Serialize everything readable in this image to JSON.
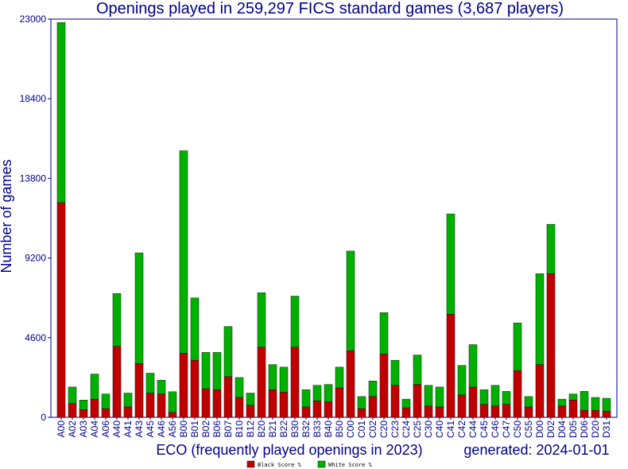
{
  "chart_data": {
    "type": "bar",
    "stacked": true,
    "title": "Openings played in 259,297 FICS standard games (3,687 players)",
    "xlabel": "ECO (frequently played openings in 2023)",
    "ylabel": "Number of games",
    "footer": "generated: 2024-01-01",
    "ylim": [
      0,
      23000
    ],
    "yticks": [
      "0",
      "4600",
      "9200",
      "13800",
      "18400",
      "23000"
    ],
    "grid": false,
    "legend_position": "bottom-center",
    "categories": [
      "A00",
      "A02",
      "A03",
      "A04",
      "A06",
      "A40",
      "A41",
      "A43",
      "A45",
      "A46",
      "A56",
      "B00",
      "B01",
      "B02",
      "B06",
      "B07",
      "B10",
      "B12",
      "B20",
      "B21",
      "B22",
      "B30",
      "B32",
      "B33",
      "B40",
      "B50",
      "C00",
      "C01",
      "C02",
      "C20",
      "C23",
      "C24",
      "C25",
      "C30",
      "C40",
      "C41",
      "C42",
      "C44",
      "C45",
      "C46",
      "C47",
      "C50",
      "C55",
      "D00",
      "D02",
      "D04",
      "D05",
      "D06",
      "D20",
      "D31"
    ],
    "series": [
      {
        "name": "Black Score %",
        "color": "#c00000",
        "values": [
          12400,
          800,
          450,
          1050,
          500,
          4100,
          600,
          3100,
          1400,
          1350,
          280,
          3700,
          3300,
          1650,
          1600,
          2350,
          1150,
          700,
          4050,
          1600,
          1450,
          4050,
          600,
          950,
          900,
          1700,
          3850,
          500,
          1200,
          3650,
          1850,
          550,
          1900,
          650,
          600,
          5950,
          1300,
          1750,
          750,
          650,
          750,
          2700,
          600,
          3050,
          8300,
          650,
          1000,
          400,
          400,
          350
        ]
      },
      {
        "name": "White Score %",
        "color": "#00b000",
        "values": [
          10400,
          950,
          550,
          1450,
          850,
          3050,
          800,
          6400,
          1150,
          800,
          1200,
          11700,
          3600,
          2100,
          2150,
          2900,
          1150,
          700,
          3150,
          1450,
          1450,
          2950,
          1000,
          900,
          1000,
          1200,
          5750,
          700,
          900,
          2400,
          1450,
          500,
          1700,
          1200,
          1150,
          5800,
          1700,
          2450,
          850,
          1200,
          750,
          2750,
          600,
          5250,
          2850,
          400,
          350,
          1100,
          750,
          750
        ]
      }
    ]
  }
}
